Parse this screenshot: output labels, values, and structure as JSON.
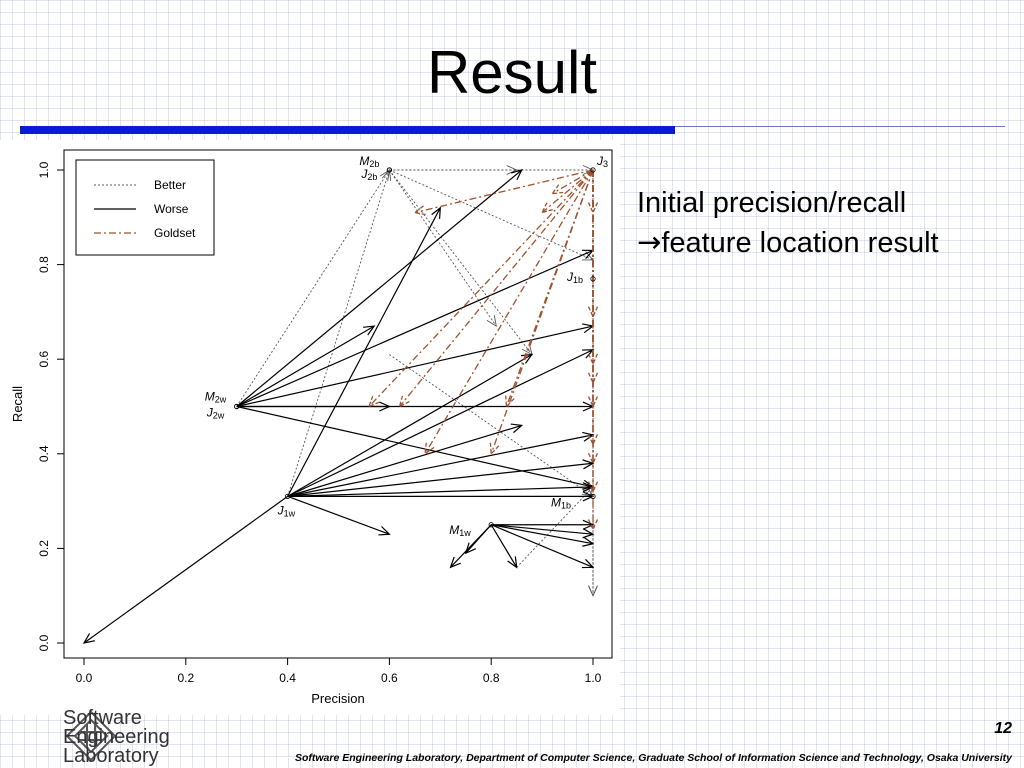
{
  "slide": {
    "title": "Result",
    "caption_line1": "Initial precision/recall",
    "caption_arrow": "→",
    "caption_line2": "feature location result",
    "page_number": "12",
    "footer": "Software Engineering Laboratory, Department of Computer Science, Graduate School of Information Science and Technology, Osaka University",
    "logo_lines": [
      "Software",
      "Engineering",
      "Laboratory"
    ],
    "colors": {
      "title_bar": "#0a1bd6",
      "goldset": "#a0522d",
      "worse": "#000000",
      "better": "#555555"
    }
  },
  "chart_data": {
    "type": "scatter",
    "xlabel": "Precision",
    "ylabel": "Recall",
    "xlim": [
      0,
      1.0
    ],
    "ylim": [
      0,
      1.0
    ],
    "x_ticks": [
      "0.0",
      "0.2",
      "0.4",
      "0.6",
      "0.8",
      "1.0"
    ],
    "y_ticks": [
      "0.0",
      "0.2",
      "0.4",
      "0.6",
      "0.8",
      "1.0"
    ],
    "legend_position": "top-left",
    "legend": [
      {
        "label": "Better",
        "style": "dotted",
        "color": "#555555"
      },
      {
        "label": "Worse",
        "style": "solid",
        "color": "#000000"
      },
      {
        "label": "Goldset",
        "style": "dashdot",
        "color": "#a0522d"
      }
    ],
    "points": [
      {
        "label": "M2b",
        "x": 0.6,
        "y": 1.0
      },
      {
        "label": "J2b",
        "x": 0.6,
        "y": 1.0
      },
      {
        "label": "J3",
        "x": 1.0,
        "y": 1.0
      },
      {
        "label": "J1b",
        "x": 1.0,
        "y": 0.77
      },
      {
        "label": "M2w",
        "x": 0.3,
        "y": 0.5
      },
      {
        "label": "J2w",
        "x": 0.3,
        "y": 0.5
      },
      {
        "label": "J1w",
        "x": 0.4,
        "y": 0.31
      },
      {
        "label": "M1b",
        "x": 1.0,
        "y": 0.31
      },
      {
        "label": "M1w",
        "x": 0.8,
        "y": 0.25
      }
    ],
    "series": [
      {
        "name": "Worse",
        "arrows": [
          [
            0.3,
            0.5,
            0.86,
            1.0
          ],
          [
            0.3,
            0.5,
            1.0,
            0.83
          ],
          [
            0.3,
            0.5,
            0.57,
            0.67
          ],
          [
            0.3,
            0.5,
            1.0,
            0.67
          ],
          [
            0.3,
            0.5,
            1.0,
            0.5
          ],
          [
            0.3,
            0.5,
            0.6,
            0.5
          ],
          [
            0.3,
            0.5,
            1.0,
            0.33
          ],
          [
            0.4,
            0.31,
            0.0,
            0.0
          ],
          [
            0.4,
            0.31,
            0.7,
            0.92
          ],
          [
            0.4,
            0.31,
            1.0,
            0.62
          ],
          [
            0.4,
            0.31,
            0.88,
            0.61
          ],
          [
            0.4,
            0.31,
            0.86,
            0.46
          ],
          [
            0.4,
            0.31,
            1.0,
            0.44
          ],
          [
            0.4,
            0.31,
            1.0,
            0.38
          ],
          [
            0.4,
            0.31,
            1.0,
            0.33
          ],
          [
            0.4,
            0.31,
            1.0,
            0.31
          ],
          [
            0.4,
            0.31,
            0.6,
            0.23
          ],
          [
            0.8,
            0.25,
            0.72,
            0.16
          ],
          [
            0.8,
            0.25,
            0.75,
            0.19
          ],
          [
            0.8,
            0.25,
            0.85,
            0.16
          ],
          [
            0.8,
            0.25,
            1.0,
            0.25
          ],
          [
            0.8,
            0.25,
            1.0,
            0.23
          ],
          [
            0.8,
            0.25,
            1.0,
            0.21
          ],
          [
            0.8,
            0.25,
            1.0,
            0.16
          ]
        ]
      },
      {
        "name": "Goldset",
        "arrows": [
          [
            1.0,
            1.0,
            0.92,
            0.95
          ],
          [
            1.0,
            1.0,
            0.65,
            0.91
          ],
          [
            1.0,
            1.0,
            1.0,
            0.91
          ],
          [
            1.0,
            1.0,
            0.9,
            0.91
          ],
          [
            1.0,
            1.0,
            0.56,
            0.5
          ],
          [
            1.0,
            1.0,
            0.62,
            0.5
          ],
          [
            1.0,
            1.0,
            0.67,
            0.4
          ],
          [
            1.0,
            1.0,
            0.8,
            0.4
          ],
          [
            1.0,
            1.0,
            0.83,
            0.5
          ],
          [
            1.0,
            1.0,
            1.0,
            0.69
          ],
          [
            1.0,
            1.0,
            1.0,
            0.59
          ],
          [
            1.0,
            1.0,
            1.0,
            0.55
          ],
          [
            1.0,
            1.0,
            1.0,
            0.5
          ],
          [
            1.0,
            1.0,
            1.0,
            0.42
          ],
          [
            1.0,
            1.0,
            1.0,
            0.38
          ],
          [
            1.0,
            1.0,
            1.0,
            0.32
          ],
          [
            1.0,
            1.0,
            1.0,
            0.24
          ]
        ]
      },
      {
        "name": "Better",
        "arrows": [
          [
            0.6,
            1.0,
            0.85,
            1.0
          ],
          [
            0.6,
            1.0,
            1.0,
            1.0
          ],
          [
            0.6,
            1.0,
            0.81,
            0.67
          ],
          [
            0.6,
            1.0,
            1.0,
            0.81
          ],
          [
            0.6,
            1.0,
            0.88,
            0.61
          ],
          [
            0.3,
            0.5,
            0.6,
            1.0
          ],
          [
            0.4,
            0.31,
            0.6,
            1.0
          ],
          [
            0.8,
            0.25,
            0.85,
            0.16
          ],
          [
            0.85,
            0.16,
            1.0,
            0.33
          ],
          [
            1.0,
            0.77,
            1.0,
            0.1
          ],
          [
            1.0,
            1.0,
            1.0,
            0.1
          ],
          [
            0.6,
            0.61,
            1.0,
            0.31
          ]
        ]
      }
    ]
  }
}
